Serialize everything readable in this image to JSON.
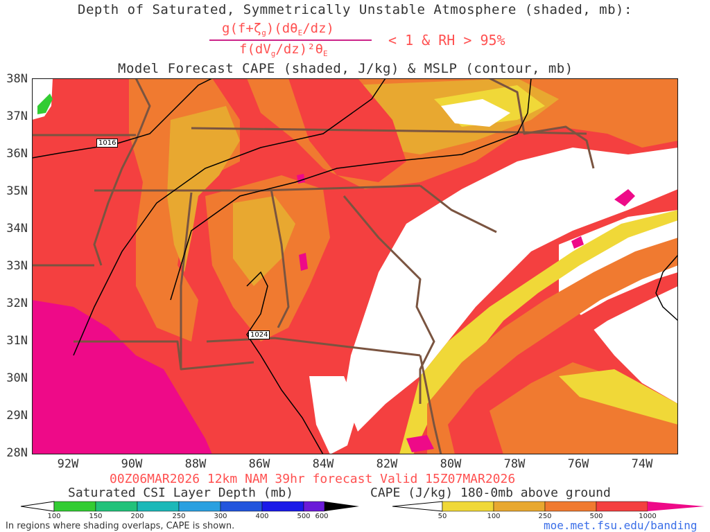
{
  "header": {
    "line1": "Depth of Saturated, Symmetrically Unstable Atmosphere (shaded, mb):",
    "numerator": "g(f+ζ",
    "numerator_sub": "g",
    "numerator_rest": ")(dθ",
    "numerator_sub2": "E",
    "numerator_end": "/dz)",
    "denominator": "f(dV",
    "denominator_sub": "g",
    "denominator_rest": "/dz)²θ",
    "denominator_sub2": "E",
    "condition": "< 1 & RH > 95%",
    "line3": "Model Forecast CAPE (shaded, J/kg) & MSLP (contour, mb)"
  },
  "map": {
    "lat_labels": [
      "38N",
      "37N",
      "36N",
      "35N",
      "34N",
      "33N",
      "32N",
      "31N",
      "30N",
      "29N",
      "28N"
    ],
    "lon_labels": [
      "92W",
      "90W",
      "88W",
      "86W",
      "84W",
      "82W",
      "80W",
      "78W",
      "76W",
      "74W"
    ],
    "isobar_labels": [
      "1016",
      "1024"
    ],
    "colors": {
      "cape_1000_plus": "#ee0a88",
      "cape_500": "#f44040",
      "cape_250": "#f07a30",
      "cape_100": "#e8a830",
      "cape_50": "#f0d838",
      "border": "#7a5440",
      "isobar": "#000000",
      "csi_green": "#33cc33"
    }
  },
  "valid_line": "00Z06MAR2026 12km NAM 39hr forecast Valid 15Z07MAR2026",
  "legend_left": {
    "title": "Saturated CSI Layer Depth (mb)",
    "ticks": [
      "100",
      "150",
      "200",
      "250",
      "300",
      "400",
      "500",
      "600"
    ],
    "colors": [
      "#33cc33",
      "#22c27a",
      "#1cb8b8",
      "#2aa0e0",
      "#2255dd",
      "#1a1ae8",
      "#6a1ad8",
      "#000000"
    ]
  },
  "legend_right": {
    "title": "CAPE (J/kg) 180-0mb above ground",
    "ticks": [
      "50",
      "100",
      "250",
      "500",
      "1000"
    ],
    "colors": [
      "#f0d838",
      "#e8a830",
      "#f07a30",
      "#f44040",
      "#ee0a88"
    ]
  },
  "footer": {
    "note": "In regions where shading overlaps, CAPE is shown.",
    "url": "moe.met.fsu.edu/banding"
  }
}
